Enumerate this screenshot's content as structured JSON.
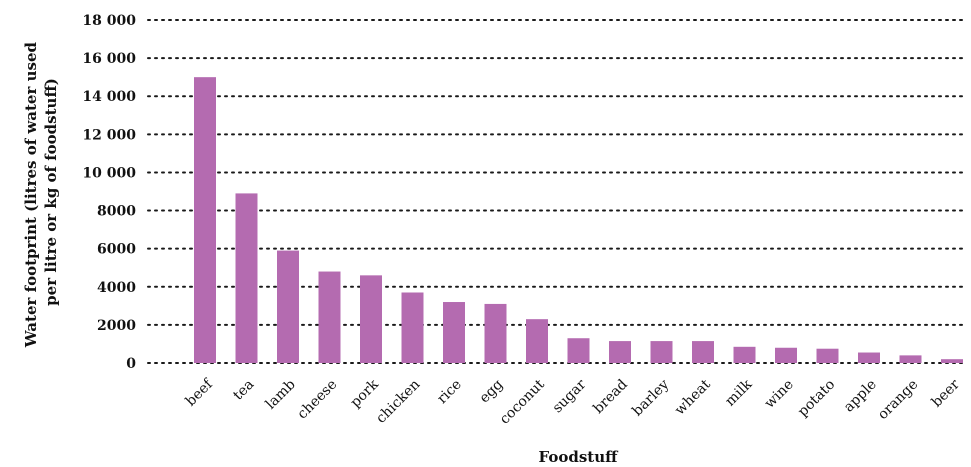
{
  "chart_data": {
    "type": "bar",
    "categories": [
      "beef",
      "tea",
      "lamb",
      "cheese",
      "pork",
      "chicken",
      "rice",
      "egg",
      "coconut",
      "sugar",
      "bread",
      "barley",
      "wheat",
      "milk",
      "wine",
      "potato",
      "apple",
      "orange",
      "beer"
    ],
    "values": [
      15000,
      8900,
      5900,
      4800,
      4600,
      3700,
      3200,
      3100,
      2300,
      1300,
      1150,
      1150,
      1150,
      850,
      800,
      750,
      550,
      400,
      200
    ],
    "xlabel": "Foodstuff",
    "ylabel_lines": [
      "Water footprint (litres of water used",
      "per litre or kg of foodstuff)"
    ],
    "ylim": [
      0,
      18000
    ],
    "yticks": [
      0,
      2000,
      4000,
      6000,
      8000,
      10000,
      12000,
      14000,
      16000,
      18000
    ],
    "ytick_labels": [
      "0",
      "2000",
      "4000",
      "6000",
      "8000",
      "10 000",
      "12 000",
      "14 000",
      "16 000",
      "18 000"
    ],
    "grid": "dotted horizontal",
    "bar_color": "#b46bb0"
  }
}
